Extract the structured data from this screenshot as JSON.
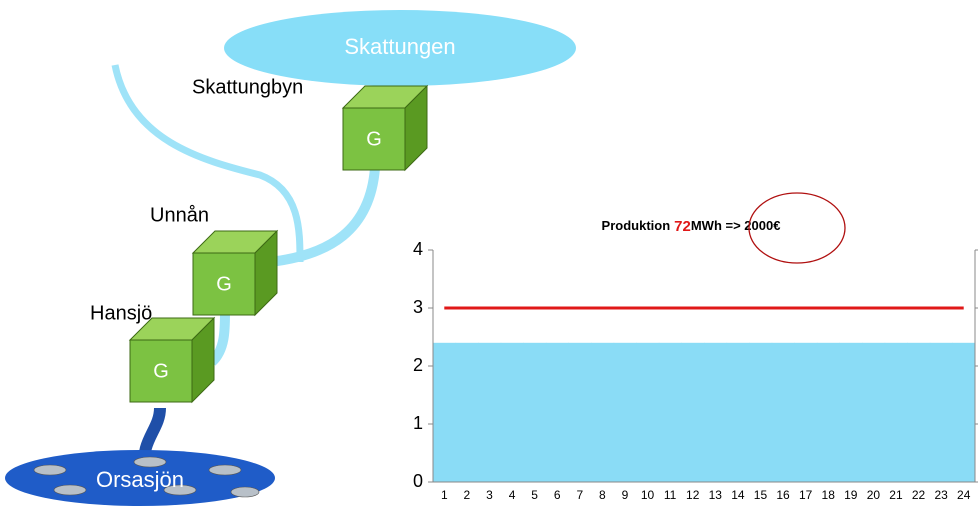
{
  "lakes": [
    {
      "label": "Skattungen"
    },
    {
      "label": "Orsasjön"
    }
  ],
  "stations": [
    {
      "label": "Skattungbyn",
      "generator": "G"
    },
    {
      "label": "Unnån",
      "generator": "G"
    },
    {
      "label": "Hansjö",
      "generator": "G"
    }
  ],
  "chart_data": {
    "type": "bar",
    "title_parts": [
      "Produktion",
      "72",
      "MWh => 2000€"
    ],
    "categories": [
      "1",
      "2",
      "3",
      "4",
      "5",
      "6",
      "7",
      "8",
      "9",
      "10",
      "11",
      "12",
      "13",
      "14",
      "15",
      "16",
      "17",
      "18",
      "19",
      "20",
      "21",
      "22",
      "23",
      "24"
    ],
    "values": [
      2.4,
      2.4,
      2.4,
      2.4,
      2.4,
      2.4,
      2.4,
      2.4,
      2.4,
      2.4,
      2.4,
      2.4,
      2.4,
      2.4,
      2.4,
      2.4,
      2.4,
      2.4,
      2.4,
      2.4,
      2.4,
      2.4,
      2.4,
      2.4
    ],
    "color": "#8adcf6",
    "line": {
      "values": [
        3,
        3,
        3,
        3,
        3,
        3,
        3,
        3,
        3,
        3,
        3,
        3,
        3,
        3,
        3,
        3,
        3,
        3,
        3,
        3,
        3,
        3,
        3,
        3
      ],
      "color": "#e01818"
    },
    "ylim": [
      0,
      4
    ],
    "yticks": [
      0,
      1,
      2,
      3,
      4
    ]
  }
}
